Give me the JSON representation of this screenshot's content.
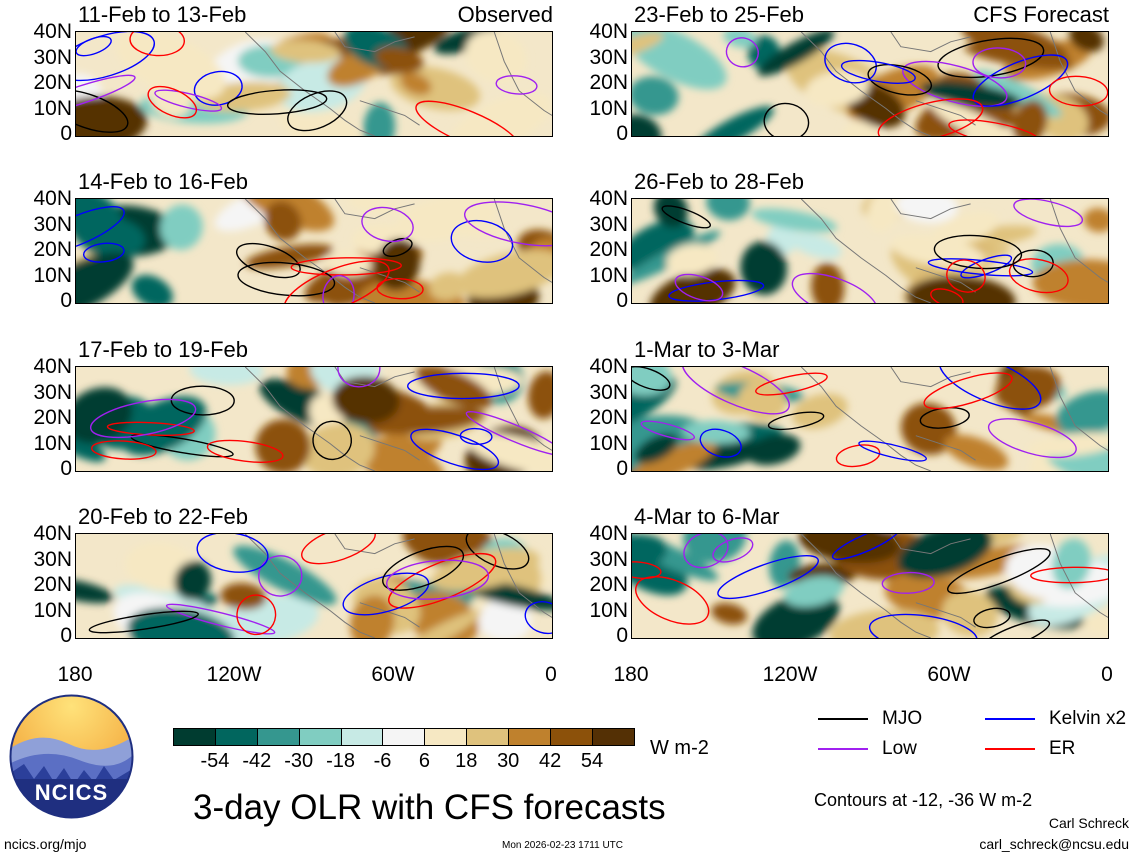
{
  "panels": [
    {
      "title": "11-Feb to 13-Feb",
      "tag": "Observed"
    },
    {
      "title": "23-Feb to 25-Feb",
      "tag": "CFS Forecast"
    },
    {
      "title": "14-Feb to 16-Feb"
    },
    {
      "title": "26-Feb to 28-Feb"
    },
    {
      "title": "17-Feb to 19-Feb"
    },
    {
      "title": "1-Mar to 3-Mar"
    },
    {
      "title": "20-Feb to 22-Feb"
    },
    {
      "title": "4-Mar to 6-Mar"
    }
  ],
  "y_ticks": [
    "40N",
    "30N",
    "20N",
    "10N",
    "0"
  ],
  "x_ticks": [
    "180",
    "120W",
    "60W",
    "0"
  ],
  "colorbar": {
    "colors": [
      "#003c30",
      "#01665e",
      "#35978f",
      "#80cdc1",
      "#c7eae5",
      "#f5f5f5",
      "#f6e8c3",
      "#dfc27d",
      "#bf812d",
      "#8c510a",
      "#543005"
    ],
    "labels": [
      "-54",
      "-42",
      "-30",
      "-18",
      "-6",
      "6",
      "18",
      "30",
      "42",
      "54"
    ],
    "units": "W m-2"
  },
  "legend": [
    {
      "label": "MJO",
      "color": "#000000"
    },
    {
      "label": "Kelvin x2",
      "color": "#0000ff"
    },
    {
      "label": "Low",
      "color": "#a020f0"
    },
    {
      "label": "ER",
      "color": "#ff0000"
    }
  ],
  "contours_note": "Contours at -12, -36 W m-2",
  "main_title": "3-day OLR with CFS forecasts",
  "logo_text": "NCICS",
  "footer": {
    "url": "ncics.org/mjo",
    "timestamp": "Mon 2026-02-23 1711 UTC",
    "author": "Carl Schreck",
    "email": "carl_schreck@ncsu.edu"
  }
}
